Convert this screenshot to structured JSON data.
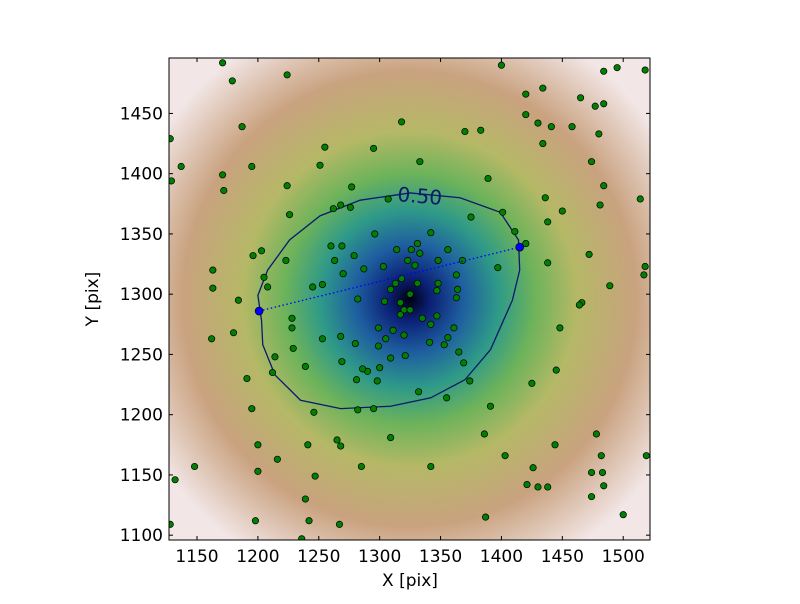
{
  "chart_data": {
    "type": "scatter",
    "xlabel": "X [pix]",
    "ylabel": "Y [pix]",
    "xlim": [
      1127,
      1522
    ],
    "ylim": [
      1096,
      1496
    ],
    "xticks": [
      1150,
      1200,
      1250,
      1300,
      1350,
      1400,
      1450,
      1500
    ],
    "yticks": [
      1100,
      1150,
      1200,
      1250,
      1300,
      1350,
      1400,
      1450
    ],
    "points": {
      "color": "#008000",
      "x": [
        1400,
        1495,
        1484,
        1518,
        1171,
        1224,
        1179,
        1420,
        1434,
        1465,
        1477,
        1484,
        1420,
        1430,
        1441,
        1458,
        1480,
        1370,
        1383,
        1187,
        1128,
        1434,
        1318,
        1295,
        1137,
        1129,
        1195,
        1333,
        1255,
        1251,
        1171,
        1172,
        1224,
        1277,
        1389,
        1474,
        1484,
        1436,
        1481,
        1514,
        1450,
        1262,
        1268,
        1276,
        1226,
        1307,
        1401,
        1438,
        1375,
        1342,
        1331,
        1326,
        1333,
        1356,
        1420,
        1411,
        1260,
        1269,
        1296,
        1223,
        1203,
        1196,
        1279,
        1314,
        1263,
        1287,
        1303,
        1348,
        1368,
        1163,
        1205,
        1208,
        1438,
        1472,
        1518,
        1517,
        1397,
        1270,
        1323,
        1331,
        1318,
        1348,
        1363,
        1313,
        1329,
        1309,
        1364,
        1163,
        1245,
        1253,
        1282,
        1304,
        1325,
        1347,
        1363,
        1184,
        1317,
        1320,
        1325,
        1335,
        1347,
        1317,
        1489,
        1466,
        1464,
        1448,
        1228,
        1180,
        1162,
        1228,
        1214,
        1268,
        1299,
        1311,
        1320,
        1342,
        1361,
        1356,
        1280,
        1305,
        1341,
        1353,
        1299,
        1365,
        1229,
        1253,
        1239,
        1290,
        1300,
        1309,
        1321,
        1269,
        1298,
        1281,
        1286,
        1369,
        1191,
        1212,
        1425,
        1445,
        1374,
        1332,
        1355,
        1391,
        1295,
        1282,
        1246,
        1195,
        1265,
        1309,
        1200,
        1241,
        1268,
        1386,
        1444,
        1478,
        1482,
        1519,
        1403,
        1216,
        1148,
        1200,
        1247,
        1285,
        1342,
        1426,
        1474,
        1483,
        1421,
        1430,
        1438,
        1484,
        1474,
        1132,
        1239,
        1387,
        1500,
        1198,
        1242,
        1267,
        1128,
        1236
      ],
      "y": [
        1490,
        1488,
        1485,
        1486,
        1492,
        1482,
        1477,
        1466,
        1471,
        1463,
        1456,
        1458,
        1449,
        1442,
        1439,
        1439,
        1433,
        1435,
        1436,
        1439,
        1429,
        1425,
        1443,
        1421,
        1406,
        1394,
        1406,
        1410,
        1422,
        1407,
        1399,
        1386,
        1390,
        1389,
        1396,
        1410,
        1390,
        1380,
        1374,
        1379,
        1369,
        1371,
        1374,
        1372,
        1366,
        1379,
        1368,
        1360,
        1364,
        1351,
        1342,
        1337,
        1334,
        1337,
        1342,
        1352,
        1340,
        1340,
        1350,
        1328,
        1336,
        1332,
        1332,
        1337,
        1328,
        1321,
        1323,
        1328,
        1328,
        1320,
        1314,
        1306,
        1326,
        1333,
        1323,
        1316,
        1322,
        1317,
        1328,
        1309,
        1313,
        1309,
        1316,
        1309,
        1324,
        1304,
        1304,
        1305,
        1306,
        1308,
        1296,
        1294,
        1300,
        1303,
        1297,
        1295,
        1293,
        1287,
        1287,
        1280,
        1282,
        1283,
        1307,
        1293,
        1291,
        1272,
        1280,
        1268,
        1263,
        1272,
        1248,
        1265,
        1272,
        1270,
        1266,
        1275,
        1272,
        1264,
        1259,
        1263,
        1260,
        1258,
        1257,
        1252,
        1255,
        1263,
        1240,
        1236,
        1239,
        1247,
        1249,
        1244,
        1228,
        1229,
        1238,
        1243,
        1230,
        1235,
        1226,
        1237,
        1228,
        1219,
        1214,
        1207,
        1205,
        1204,
        1202,
        1205,
        1179,
        1181,
        1175,
        1175,
        1174,
        1184,
        1175,
        1184,
        1166,
        1166,
        1166,
        1163,
        1157,
        1153,
        1149,
        1157,
        1157,
        1156,
        1152,
        1152,
        1142,
        1140,
        1140,
        1141,
        1132,
        1146,
        1130,
        1115,
        1117,
        1112,
        1112,
        1109,
        1109,
        1097
      ]
    },
    "axis_points": {
      "color": "#0000ff",
      "x": [
        1201,
        1415
      ],
      "y": [
        1286,
        1339
      ]
    },
    "contour": {
      "label": "0.50",
      "color": "#0a1a6e",
      "x": [
        1203,
        1200,
        1208,
        1226,
        1251,
        1284,
        1325,
        1366,
        1399,
        1414,
        1415,
        1409,
        1391,
        1370,
        1342,
        1309,
        1268,
        1235,
        1214,
        1204
      ],
      "y": [
        1278,
        1299,
        1320,
        1345,
        1365,
        1378,
        1384,
        1380,
        1368,
        1345,
        1320,
        1295,
        1254,
        1229,
        1214,
        1207,
        1205,
        1212,
        1233,
        1258
      ]
    }
  }
}
